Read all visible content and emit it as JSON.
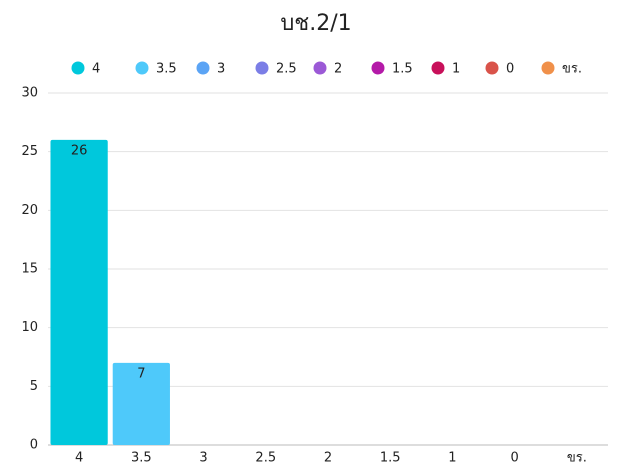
{
  "chart_data": {
    "type": "bar",
    "title": "บช.2/1",
    "categories": [
      "4",
      "3.5",
      "3",
      "2.5",
      "2",
      "1.5",
      "1",
      "0",
      "ขร."
    ],
    "values": [
      26,
      7,
      0,
      0,
      0,
      0,
      0,
      0,
      0
    ],
    "colors": [
      "#00c8dc",
      "#4ec9fa",
      "#5ba4f5",
      "#7b7ee6",
      "#9b59d6",
      "#b41aa8",
      "#c8105a",
      "#d9534a",
      "#f0904a"
    ],
    "ylim": [
      0,
      30
    ],
    "yticks": [
      0,
      5,
      10,
      15,
      20,
      25,
      30
    ],
    "grid": true,
    "legend": "top"
  }
}
